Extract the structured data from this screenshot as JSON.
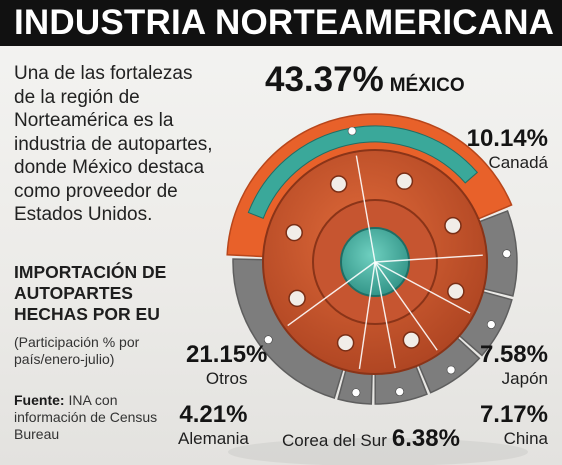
{
  "header": {
    "title": "INDUSTRIA NORTEAMERICANA"
  },
  "intro": {
    "text": "Una de las fortalezas de la región de Norteamérica es la industria de autopartes, donde México destaca como proveedor de Estados Unidos."
  },
  "section": {
    "title": "IMPORTACIÓN DE AUTOPARTES HECHAS POR EU",
    "note": "(Participación % por país/enero-julio)"
  },
  "source": {
    "label": "Fuente:",
    "text": "INA con información de Census Bureau"
  },
  "colors": {
    "highlight": "#e8612a",
    "segment": "#7d7d7d",
    "hub": "#c9502a",
    "inner": "#3aa89a"
  },
  "chart_data": {
    "type": "pie",
    "categories": [
      "México",
      "Canadá",
      "Japón",
      "China",
      "Corea del Sur",
      "Alemania",
      "Otros"
    ],
    "values": [
      43.37,
      10.14,
      7.58,
      7.17,
      6.38,
      4.21,
      21.15
    ],
    "value_labels": [
      "43.37%",
      "10.14%",
      "7.58%",
      "7.17%",
      "6.38%",
      "4.21%",
      "21.15%"
    ],
    "category_labels": [
      "MÉXICO",
      "Canadá",
      "Japón",
      "China",
      "Corea del Sur",
      "Alemania",
      "Otros"
    ],
    "highlight": "México"
  }
}
